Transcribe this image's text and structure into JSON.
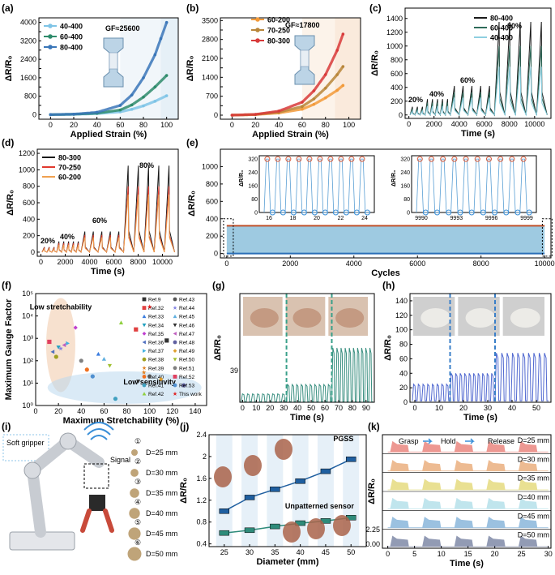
{
  "chart_data": [
    {
      "id": "a",
      "type": "line",
      "panel_label": "(a)",
      "xlabel": "Applied Strain (%)",
      "ylabel": "ΔR/R₀",
      "xlim": [
        -10,
        110
      ],
      "ylim": [
        -200,
        4200
      ],
      "xticks": [
        0,
        20,
        40,
        60,
        80,
        100
      ],
      "yticks": [
        0,
        400,
        800,
        1200,
        1600,
        2000,
        2400,
        2800,
        3200,
        3600,
        4000
      ],
      "ytick_labels": [
        "0",
        "",
        "800",
        "",
        "1600",
        "",
        "2400",
        "",
        "3200",
        "",
        "4000"
      ],
      "annotation": "GF≈25600",
      "series": [
        {
          "name": "40-400",
          "color": "#7fc4e6",
          "x": [
            0,
            20,
            40,
            60,
            70,
            80,
            90,
            100
          ],
          "y": [
            0,
            10,
            40,
            120,
            230,
            380,
            580,
            820
          ]
        },
        {
          "name": "60-400",
          "color": "#2e8b6b",
          "x": [
            0,
            20,
            40,
            60,
            70,
            80,
            90,
            100
          ],
          "y": [
            0,
            15,
            60,
            200,
            420,
            760,
            1200,
            1700
          ]
        },
        {
          "name": "80-400",
          "color": "#3a76b8",
          "x": [
            0,
            20,
            40,
            60,
            70,
            80,
            90,
            95,
            100
          ],
          "y": [
            0,
            20,
            100,
            400,
            850,
            1600,
            2600,
            3300,
            4000
          ]
        }
      ]
    },
    {
      "id": "b",
      "type": "line",
      "panel_label": "(b)",
      "xlabel": "Applied Strain (%)",
      "ylabel": "ΔR/R₀",
      "xlim": [
        -10,
        110
      ],
      "ylim": [
        -150,
        3600
      ],
      "xticks": [
        0,
        20,
        40,
        60,
        80,
        100
      ],
      "yticks": [
        0,
        350,
        700,
        1050,
        1400,
        1750,
        2100,
        2450,
        2800,
        3150,
        3500
      ],
      "ytick_labels": [
        "0",
        "",
        "700",
        "",
        "1400",
        "",
        "2100",
        "",
        "2800",
        "",
        "3500"
      ],
      "annotation": "GF≈17800",
      "series": [
        {
          "name": "60-200",
          "color": "#f29a3a",
          "x": [
            0,
            20,
            40,
            60,
            70,
            80,
            90,
            95
          ],
          "y": [
            0,
            20,
            80,
            220,
            400,
            640,
            920,
            1100
          ]
        },
        {
          "name": "70-250",
          "color": "#b8863a",
          "x": [
            0,
            20,
            40,
            60,
            70,
            80,
            90,
            95
          ],
          "y": [
            0,
            25,
            110,
            320,
            600,
            1000,
            1500,
            1800
          ]
        },
        {
          "name": "80-300",
          "color": "#d83a3a",
          "x": [
            0,
            20,
            40,
            60,
            70,
            80,
            90,
            95
          ],
          "y": [
            0,
            30,
            150,
            480,
            900,
            1500,
            2400,
            3000
          ]
        }
      ]
    },
    {
      "id": "c",
      "type": "line",
      "panel_label": "(c)",
      "xlabel": "Time (s)",
      "ylabel": "ΔR/R₀",
      "xlim": [
        -300,
        11300
      ],
      "ylim": [
        -50,
        1550
      ],
      "xticks": [
        0,
        2000,
        4000,
        6000,
        8000,
        10000
      ],
      "yticks": [
        0,
        200,
        400,
        600,
        800,
        1000,
        1200,
        1400
      ],
      "annotations": [
        "20%",
        "40%",
        "60%",
        "80%"
      ],
      "series": [
        {
          "name": "80-400",
          "color": "#1a1a1a",
          "strain_peaks": {
            "20%": 120,
            "40%": 230,
            "60%": 420,
            "80%": 1350
          }
        },
        {
          "name": "60-400",
          "color": "#2e6b5a",
          "strain_peaks": {
            "20%": 90,
            "40%": 180,
            "60%": 330,
            "80%": 1000
          }
        },
        {
          "name": "40-400",
          "color": "#8ecfe0",
          "strain_peaks": {
            "20%": 60,
            "40%": 130,
            "60%": 250,
            "80%": 700
          }
        }
      ]
    },
    {
      "id": "d",
      "type": "line",
      "panel_label": "(d)",
      "xlabel": "Time (s)",
      "ylabel": "ΔR/R₀",
      "xlim": [
        -300,
        11300
      ],
      "ylim": [
        -50,
        1250
      ],
      "xticks": [
        0,
        2000,
        4000,
        6000,
        8000,
        10000
      ],
      "yticks": [
        0,
        200,
        400,
        600,
        800,
        1000,
        1200
      ],
      "annotations": [
        "20%",
        "40%",
        "60%",
        "80%"
      ],
      "series": [
        {
          "name": "80-300",
          "color": "#1a1a1a",
          "strain_peaks": {
            "20%": 60,
            "40%": 130,
            "60%": 250,
            "80%": 1050
          }
        },
        {
          "name": "70-250",
          "color": "#e0392e",
          "strain_peaks": {
            "20%": 50,
            "40%": 110,
            "60%": 210,
            "80%": 800
          }
        },
        {
          "name": "60-200",
          "color": "#f0a050",
          "strain_peaks": {
            "20%": 40,
            "40%": 90,
            "60%": 180,
            "80%": 700
          }
        }
      ]
    },
    {
      "id": "e",
      "type": "line",
      "panel_label": "(e)",
      "xlabel": "Cycles",
      "ylabel": "ΔR/R₀",
      "xlim": [
        -200,
        10200
      ],
      "ylim": [
        -50,
        1200
      ],
      "xticks": [
        0,
        2000,
        4000,
        6000,
        8000,
        10000
      ],
      "yticks": [
        0,
        200,
        400,
        600,
        800,
        1000
      ],
      "band": {
        "upper": 320,
        "lower": 0
      },
      "insets": [
        {
          "xticks": [
            16,
            18,
            20,
            22,
            24
          ],
          "yticks": [
            0,
            80,
            160,
            240,
            320
          ],
          "peak": 320
        },
        {
          "xticks": [
            9990,
            9993,
            9996,
            9999
          ],
          "yticks": [
            0,
            80,
            160,
            240,
            320
          ],
          "peak": 320
        }
      ]
    },
    {
      "id": "f",
      "type": "scatter",
      "panel_label": "(f)",
      "xlabel": "Maximum Stretchability (%)",
      "ylabel": "Maximum Gauge Factor",
      "xlim": [
        0,
        150
      ],
      "ylim_log": [
        0,
        5
      ],
      "xticks": [
        0,
        20,
        40,
        60,
        80,
        100,
        120,
        140
      ],
      "ytick_labels": [
        "10⁰",
        "10¹",
        "10²",
        "10³",
        "10⁴",
        "10⁵"
      ],
      "regions": [
        "Low stretchability",
        "Low sensitivity"
      ],
      "points": [
        {
          "ref": "Ref.9",
          "x": 115,
          "gf": 800,
          "color": "#333333",
          "marker": "square"
        },
        {
          "ref": "Ref.32",
          "x": 88,
          "gf": 2500,
          "color": "#e04040",
          "marker": "square"
        },
        {
          "ref": "Ref.33",
          "x": 55,
          "gf": 200,
          "color": "#3b7de0",
          "marker": "triangle"
        },
        {
          "ref": "Ref.34",
          "x": 20,
          "gf": 400,
          "color": "#20a0c0",
          "marker": "triangle-down"
        },
        {
          "ref": "Ref.35",
          "x": 35,
          "gf": 3000,
          "color": "#c040d0",
          "marker": "diamond"
        },
        {
          "ref": "Ref.36",
          "x": 15,
          "gf": 250,
          "color": "#5070c0",
          "marker": "triangle-left"
        },
        {
          "ref": "Ref.37",
          "x": 28,
          "gf": 600,
          "color": "#40b0e0",
          "marker": "triangle-right"
        },
        {
          "ref": "Ref.38",
          "x": 18,
          "gf": 150,
          "color": "#a0a020",
          "marker": "hexagon"
        },
        {
          "ref": "Ref.39",
          "x": 95,
          "gf": 30,
          "color": "#e08020",
          "marker": "star"
        },
        {
          "ref": "Ref.40",
          "x": 45,
          "gf": 40,
          "color": "#f07020",
          "marker": "circle"
        },
        {
          "ref": "Ref.41",
          "x": 70,
          "gf": 2,
          "color": "#40a0c0",
          "marker": "circle"
        },
        {
          "ref": "Ref.42",
          "x": 75,
          "gf": 5000,
          "color": "#90d040",
          "marker": "triangle"
        },
        {
          "ref": "Ref.43",
          "x": 100,
          "gf": 20,
          "color": "#555555",
          "marker": "circle"
        },
        {
          "ref": "Ref.44",
          "x": 22,
          "gf": 350,
          "color": "#8080e0",
          "marker": "star"
        },
        {
          "ref": "Ref.45",
          "x": 60,
          "gf": 120,
          "color": "#60b0e0",
          "marker": "triangle"
        },
        {
          "ref": "Ref.46",
          "x": 90,
          "gf": 12,
          "color": "#303030",
          "marker": "triangle-down"
        },
        {
          "ref": "Ref.47",
          "x": 25,
          "gf": 500,
          "color": "#c060c0",
          "marker": "triangle-left"
        },
        {
          "ref": "Ref.48",
          "x": 130,
          "gf": 8,
          "color": "#6060a0",
          "marker": "circle"
        },
        {
          "ref": "Ref.49",
          "x": 110,
          "gf": 15,
          "color": "#e0a030",
          "marker": "diamond"
        },
        {
          "ref": "Ref.50",
          "x": 65,
          "gf": 60,
          "color": "#a0c030",
          "marker": "triangle-down"
        },
        {
          "ref": "Ref.51",
          "x": 40,
          "gf": 100,
          "color": "#808080",
          "marker": "hexagon"
        },
        {
          "ref": "Ref.52",
          "x": 12,
          "gf": 700,
          "color": "#e04060",
          "marker": "square"
        },
        {
          "ref": "Ref.53",
          "x": 50,
          "gf": 20,
          "color": "#5090d0",
          "marker": "circle"
        },
        {
          "ref": "This work",
          "x": 100,
          "gf": 25600,
          "color": "#e02020",
          "marker": "star"
        }
      ]
    },
    {
      "id": "g",
      "type": "line",
      "panel_label": "(g)",
      "xlabel": "Time (s)",
      "ylabel": "ΔR/R₀",
      "xlim": [
        -2,
        96
      ],
      "ylim": [
        0,
        520
      ],
      "xticks": [
        0,
        10,
        20,
        30,
        40,
        50,
        60,
        70,
        80,
        90
      ],
      "yticks": [],
      "ytick_labels": [
        "39"
      ],
      "dividers_x": [
        32,
        65
      ],
      "segments": [
        {
          "peak": 40,
          "count": 9
        },
        {
          "peak": 85,
          "count": 10
        },
        {
          "peak": 260,
          "count": 10
        }
      ],
      "color": "#3a8f80"
    },
    {
      "id": "h",
      "type": "line",
      "panel_label": "(h)",
      "xlabel": "Time (s)",
      "ylabel": "ΔR/R₀",
      "xlim": [
        -2,
        56
      ],
      "ylim": [
        0,
        150
      ],
      "xticks": [
        0,
        10,
        20,
        30,
        40,
        50
      ],
      "yticks": [
        0,
        20,
        40,
        60,
        80,
        100,
        120,
        140
      ],
      "dividers_x": [
        14.5,
        33
      ],
      "segments": [
        {
          "peak": 25,
          "count": 8
        },
        {
          "peak": 40,
          "count": 10
        },
        {
          "peak": 68,
          "count": 10
        }
      ],
      "color": "#5068d0"
    },
    {
      "id": "j",
      "type": "line",
      "panel_label": "(j)",
      "xlabel": "Diameter (mm)",
      "ylabel": "ΔR/R₀",
      "xlim": [
        22,
        53
      ],
      "ylim": [
        0.35,
        2.4
      ],
      "xticks": [
        25,
        30,
        35,
        40,
        45,
        50
      ],
      "yticks": [
        0.4,
        0.8,
        1.2,
        1.6,
        2.0,
        2.4
      ],
      "series": [
        {
          "name": "PGSS",
          "color": "#1f5fa0",
          "x": [
            25,
            30,
            35,
            40,
            45,
            50
          ],
          "y": [
            1.0,
            1.25,
            1.4,
            1.55,
            1.73,
            1.95
          ]
        },
        {
          "name": "Unpatterned sensor",
          "color": "#2e8b7a",
          "x": [
            25,
            30,
            35,
            40,
            45,
            50
          ],
          "y": [
            0.6,
            0.65,
            0.72,
            0.78,
            0.82,
            0.88
          ]
        }
      ]
    },
    {
      "id": "k",
      "type": "line",
      "panel_label": "(k)",
      "xlabel": "Time (s)",
      "ylabel": "ΔR/R₀",
      "xlim": [
        -1,
        30.5
      ],
      "xticks": [
        0,
        5,
        10,
        15,
        20,
        25,
        30
      ],
      "ytick_labels": [
        "2.25",
        "0.00"
      ],
      "phases": [
        "Grasp",
        "Hold",
        "Release"
      ],
      "series": [
        {
          "name": "D=25 mm",
          "color": "#e0453a"
        },
        {
          "name": "D=30 mm",
          "color": "#e0843a"
        },
        {
          "name": "D=35 mm",
          "color": "#d8c83a"
        },
        {
          "name": "D=40 mm",
          "color": "#8ed0e0"
        },
        {
          "name": "D=45 mm",
          "color": "#4a8fc8"
        },
        {
          "name": "D=50 mm",
          "color": "#3a4a78"
        }
      ]
    }
  ],
  "panel_i": {
    "label": "(i)",
    "gripper_label": "Soft\ngripper",
    "signal_label": "Signal",
    "objects": [
      {
        "num": "①",
        "label": "D=25 mm"
      },
      {
        "num": "②",
        "label": "D=30 mm"
      },
      {
        "num": "③",
        "label": "D=35 mm"
      },
      {
        "num": "④",
        "label": "D=40 mm"
      },
      {
        "num": "⑤",
        "label": "D=45 mm"
      },
      {
        "num": "⑥",
        "label": "D=50 mm"
      }
    ]
  },
  "colors": {
    "axis": "#000000",
    "band": "#9ecae1",
    "band_top": "#c0502a"
  }
}
